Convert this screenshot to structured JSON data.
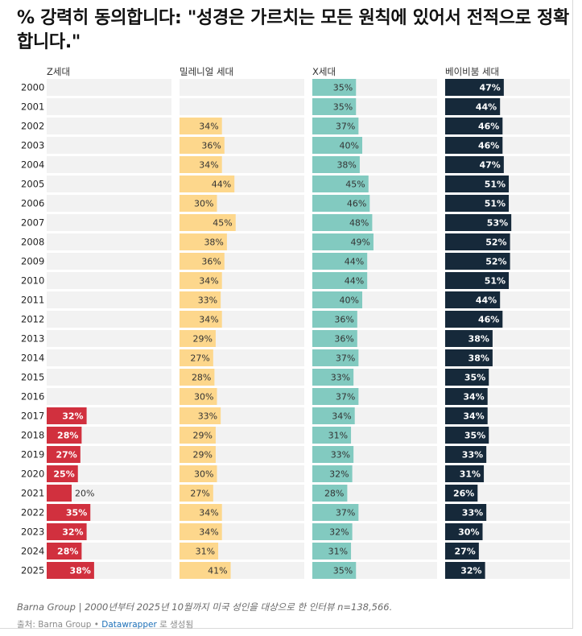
{
  "title": "% 강력히 동의합니다: \"성경은 가르치는 모든 원칙에 있어서 전적으로 정확합니다.\"",
  "footnote": "Barna Group | 2000년부터 2025년 10월까지 미국 성인을 대상으로 한 인터뷰 n=138,566.",
  "source": {
    "prefix": "출처: Barna Group",
    "separator": "•",
    "link": "Datawrapper",
    "suffix": "로 생성됨"
  },
  "chart_data": {
    "type": "bar",
    "orientation": "horizontal",
    "value_suffix": "%",
    "xlim": [
      0,
      100
    ],
    "categories": [
      "2000",
      "2001",
      "2002",
      "2003",
      "2004",
      "2005",
      "2006",
      "2007",
      "2008",
      "2009",
      "2010",
      "2011",
      "2012",
      "2013",
      "2014",
      "2015",
      "2016",
      "2017",
      "2018",
      "2019",
      "2020",
      "2021",
      "2022",
      "2023",
      "2024",
      "2025"
    ],
    "series": [
      {
        "name": "Z세대",
        "color": "#d1303e",
        "values": [
          null,
          null,
          null,
          null,
          null,
          null,
          null,
          null,
          null,
          null,
          null,
          null,
          null,
          null,
          null,
          null,
          null,
          32,
          28,
          27,
          25,
          20,
          35,
          32,
          28,
          38
        ]
      },
      {
        "name": "밀레니얼 세대",
        "color": "#fdd78c",
        "values": [
          null,
          null,
          34,
          36,
          34,
          44,
          30,
          45,
          38,
          36,
          34,
          33,
          34,
          29,
          27,
          28,
          30,
          33,
          29,
          29,
          30,
          27,
          34,
          34,
          31,
          41
        ]
      },
      {
        "name": "X세대",
        "color": "#82cac0",
        "values": [
          35,
          35,
          37,
          40,
          38,
          45,
          46,
          48,
          49,
          44,
          44,
          40,
          36,
          36,
          37,
          33,
          37,
          34,
          31,
          33,
          32,
          28,
          37,
          32,
          31,
          35
        ]
      },
      {
        "name": "베이비붐 세대",
        "color": "#16293a",
        "values": [
          47,
          44,
          46,
          46,
          47,
          51,
          51,
          53,
          52,
          52,
          51,
          44,
          46,
          38,
          38,
          35,
          34,
          34,
          35,
          33,
          31,
          26,
          33,
          30,
          27,
          32
        ]
      }
    ]
  },
  "colors": {
    "track": "#f2f2f2",
    "label_on_dark": "#ffffff",
    "label_on_light": "#333333"
  }
}
